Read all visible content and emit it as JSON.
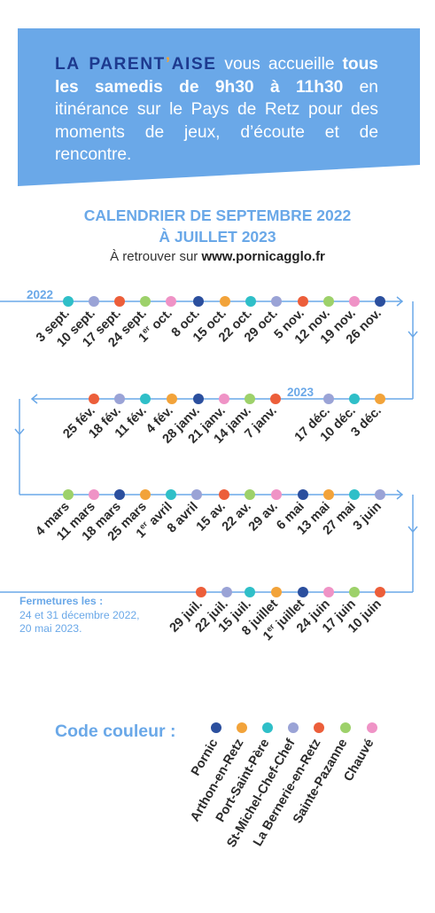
{
  "intro": {
    "brand_a": "LA PARENT",
    "brand_b": "’",
    "brand_c": "AISE",
    "text_1": " vous accueille ",
    "text_bold": "tous les samedis de 9h30 à 11h30",
    "text_2": " en itinérance sur le Pays de Retz pour des moments de jeux, d’écoute et de rencontre."
  },
  "calendar": {
    "title_line1": "CALENDRIER DE SEPTEMBRE 2022",
    "title_line2": "À JUILLET 2023",
    "find_prefix": "À retrouver sur ",
    "find_url": "www.pornicagglo.fr"
  },
  "colors": {
    "banner": "#6aa8e8",
    "line": "#6aa8e8",
    "pornic": "#2b4f9e",
    "arthon": "#f2a33a",
    "portsaintpere": "#2fbfc8",
    "stmichel": "#9aa3d6",
    "bernerie": "#ec5e3a",
    "sainte_pazanne": "#9dd16a",
    "chauve": "#ef93c6"
  },
  "years": [
    "2022",
    "2023"
  ],
  "rows": [
    {
      "dates": [
        {
          "label": "3 sept.",
          "place": "portsaintpere"
        },
        {
          "label": "10 sept.",
          "place": "stmichel"
        },
        {
          "label": "17 sept.",
          "place": "bernerie"
        },
        {
          "label": "24 sept.",
          "place": "sainte_pazanne"
        },
        {
          "label": "1er oct.",
          "place": "chauve"
        },
        {
          "label": "8 oct.",
          "place": "pornic"
        },
        {
          "label": "15 oct.",
          "place": "arthon"
        },
        {
          "label": "22 oct.",
          "place": "portsaintpere"
        },
        {
          "label": "29 oct.",
          "place": "stmichel"
        },
        {
          "label": "5 nov.",
          "place": "bernerie"
        },
        {
          "label": "12 nov.",
          "place": "sainte_pazanne"
        },
        {
          "label": "19 nov.",
          "place": "chauve"
        },
        {
          "label": "26 nov.",
          "place": "pornic"
        }
      ]
    },
    {
      "dates": [
        {
          "label": "25 fév.",
          "place": "bernerie"
        },
        {
          "label": "18 fév.",
          "place": "stmichel"
        },
        {
          "label": "11 fév.",
          "place": "portsaintpere"
        },
        {
          "label": "4 fév.",
          "place": "arthon"
        },
        {
          "label": "28 janv.",
          "place": "pornic"
        },
        {
          "label": "21 janv.",
          "place": "chauve"
        },
        {
          "label": "14 janv.",
          "place": "sainte_pazanne"
        },
        {
          "label": "7 janv.",
          "place": "bernerie"
        },
        {
          "label": "17 déc.",
          "place": "stmichel"
        },
        {
          "label": "10 déc.",
          "place": "portsaintpere"
        },
        {
          "label": "3 déc.",
          "place": "arthon"
        }
      ]
    },
    {
      "dates": [
        {
          "label": "4 mars",
          "place": "sainte_pazanne"
        },
        {
          "label": "11 mars",
          "place": "chauve"
        },
        {
          "label": "18 mars",
          "place": "pornic"
        },
        {
          "label": "25 mars",
          "place": "arthon"
        },
        {
          "label": "1er avril",
          "place": "portsaintpere"
        },
        {
          "label": "8 avril",
          "place": "stmichel"
        },
        {
          "label": "15 av.",
          "place": "bernerie"
        },
        {
          "label": "22 av.",
          "place": "sainte_pazanne"
        },
        {
          "label": "29 av.",
          "place": "chauve"
        },
        {
          "label": "6 mai",
          "place": "pornic"
        },
        {
          "label": "13 mai",
          "place": "arthon"
        },
        {
          "label": "27 mai",
          "place": "portsaintpere"
        },
        {
          "label": "3 juin",
          "place": "stmichel"
        }
      ]
    },
    {
      "dates": [
        {
          "label": "29 juil.",
          "place": "bernerie"
        },
        {
          "label": "22 juil.",
          "place": "stmichel"
        },
        {
          "label": "15 juil.",
          "place": "portsaintpere"
        },
        {
          "label": "8 juillet",
          "place": "arthon"
        },
        {
          "label": "1er juillet",
          "place": "pornic"
        },
        {
          "label": "24 juin",
          "place": "chauve"
        },
        {
          "label": "17 juin",
          "place": "sainte_pazanne"
        },
        {
          "label": "10 juin",
          "place": "bernerie"
        }
      ]
    }
  ],
  "closures": {
    "heading": "Fermetures les :",
    "line1": "24 et 31 décembre 2022,",
    "line2": "20 mai 2023."
  },
  "legend": {
    "title": "Code couleur :",
    "items": [
      {
        "name": "Pornic",
        "place": "pornic"
      },
      {
        "name": "Arthon-en-Retz",
        "place": "arthon"
      },
      {
        "name": "Port-Saint-Père",
        "place": "portsaintpere"
      },
      {
        "name": "St-Michel-Chef-Chef",
        "place": "stmichel"
      },
      {
        "name": "La Bernerie-en-Retz",
        "place": "bernerie"
      },
      {
        "name": "Sainte-Pazanne",
        "place": "sainte_pazanne"
      },
      {
        "name": "Chauvé",
        "place": "chauve"
      }
    ]
  }
}
